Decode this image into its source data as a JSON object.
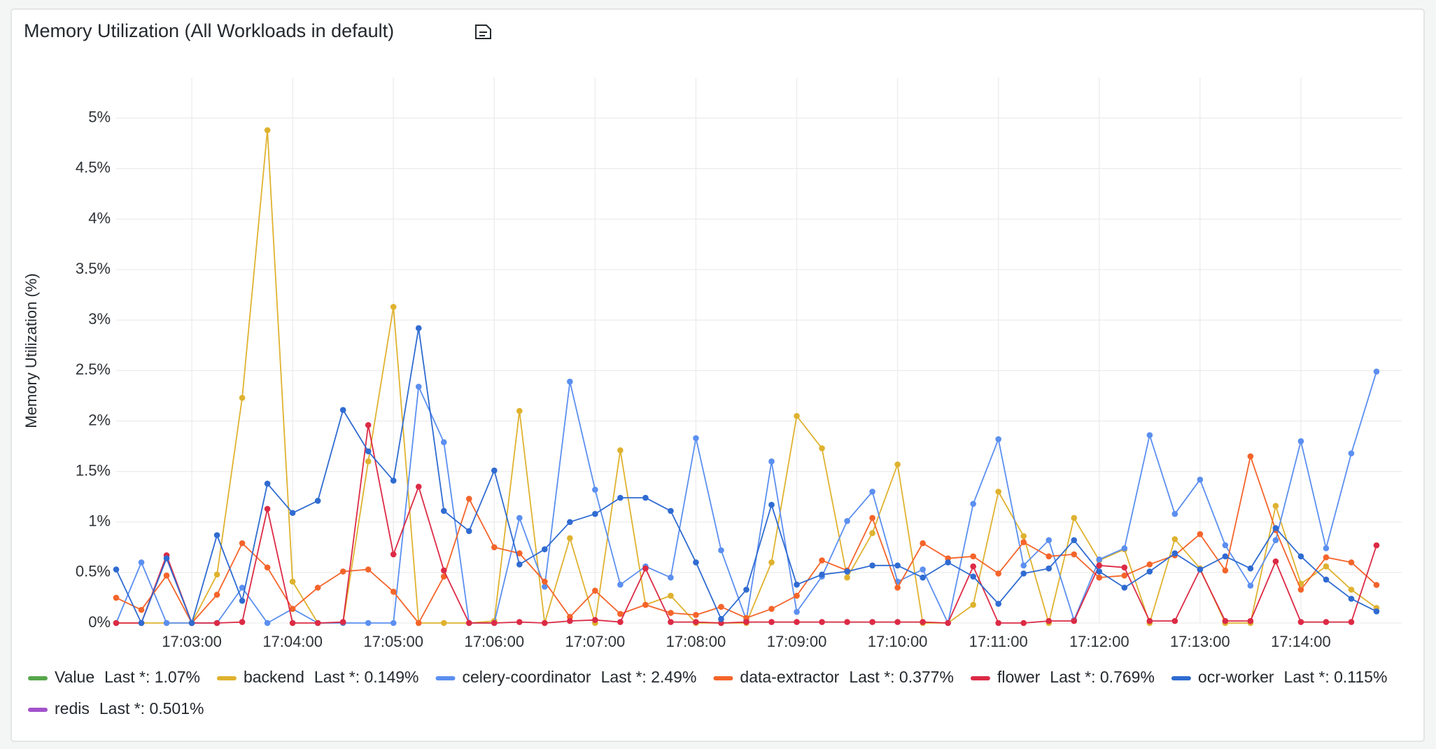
{
  "chart_data": {
    "type": "line",
    "title": "Memory Utilization (All Workloads in default)",
    "y_label": "Memory Utilization (%)",
    "x": [
      "17:02:15",
      "17:02:30",
      "17:02:45",
      "17:03:00",
      "17:03:15",
      "17:03:30",
      "17:03:45",
      "17:04:00",
      "17:04:15",
      "17:04:30",
      "17:04:45",
      "17:05:00",
      "17:05:15",
      "17:05:30",
      "17:05:45",
      "17:06:00",
      "17:06:15",
      "17:06:30",
      "17:06:45",
      "17:07:00",
      "17:07:15",
      "17:07:30",
      "17:07:45",
      "17:08:00",
      "17:08:15",
      "17:08:30",
      "17:08:45",
      "17:09:00",
      "17:09:15",
      "17:09:30",
      "17:09:45",
      "17:10:00",
      "17:10:15",
      "17:10:30",
      "17:10:45",
      "17:11:00",
      "17:11:15",
      "17:11:30",
      "17:11:45",
      "17:12:00",
      "17:12:15",
      "17:12:30",
      "17:12:45",
      "17:13:00",
      "17:13:15",
      "17:13:30",
      "17:13:45",
      "17:14:00",
      "17:14:15",
      "17:14:30",
      "17:14:45"
    ],
    "xlim": [
      "17:02:15",
      "17:15:00"
    ],
    "xticks": [
      "17:03:00",
      "17:04:00",
      "17:05:00",
      "17:06:00",
      "17:07:00",
      "17:08:00",
      "17:09:00",
      "17:10:00",
      "17:11:00",
      "17:12:00",
      "17:13:00",
      "17:14:00"
    ],
    "ylim": [
      0,
      5.4
    ],
    "yticks": [
      {
        "value": 0,
        "label": "0%"
      },
      {
        "value": 0.5,
        "label": "0.5%"
      },
      {
        "value": 1,
        "label": "1%"
      },
      {
        "value": 1.5,
        "label": "1.5%"
      },
      {
        "value": 2,
        "label": "2%"
      },
      {
        "value": 2.5,
        "label": "2.5%"
      },
      {
        "value": 3,
        "label": "3%"
      },
      {
        "value": 3.5,
        "label": "3.5%"
      },
      {
        "value": 4,
        "label": "4%"
      },
      {
        "value": 4.5,
        "label": "4.5%"
      },
      {
        "value": 5,
        "label": "5%"
      }
    ],
    "grid": true,
    "series": [
      {
        "name": "Value",
        "color": "#56a64b",
        "hidden": true,
        "legend_value": "Last *: 1.07%"
      },
      {
        "name": "backend",
        "color": "#dfb22f",
        "legend_value": "Last *: 0.149%",
        "values": [
          0,
          0,
          0,
          0,
          0.48,
          2.23,
          4.88,
          0.41,
          0,
          0,
          1.6,
          3.13,
          0,
          0,
          0,
          0.02,
          2.1,
          0,
          0.84,
          0,
          1.71,
          0.18,
          0.27,
          0,
          0,
          0,
          0.6,
          2.05,
          1.73,
          0.45,
          0.89,
          1.57,
          0,
          0,
          0.18,
          1.3,
          0.86,
          0,
          1.04,
          0.62,
          0.73,
          0,
          0.83,
          0.54,
          0,
          0,
          1.16,
          0.39,
          0.56,
          0.33,
          0.149
        ]
      },
      {
        "name": "celery-coordinator",
        "color": "#5b8ff0",
        "legend_value": "Last *: 2.49%",
        "values": [
          0,
          0.6,
          0,
          0,
          0,
          0.35,
          0,
          0.14,
          0,
          0,
          0,
          0,
          2.34,
          1.79,
          0,
          0,
          1.04,
          0.36,
          2.39,
          1.32,
          0.38,
          0.56,
          0.45,
          1.83,
          0.72,
          0.03,
          1.6,
          0.11,
          0.46,
          1.01,
          1.3,
          0.41,
          0.53,
          0,
          1.18,
          1.82,
          0.57,
          0.82,
          0.03,
          0.63,
          0.74,
          1.86,
          1.08,
          1.42,
          0.77,
          0.37,
          0.82,
          1.8,
          0.74,
          1.68,
          2.49
        ]
      },
      {
        "name": "data-extractor",
        "color": "#f4642a",
        "legend_value": "Last *: 0.377%",
        "values": [
          0.25,
          0.13,
          0.47,
          0,
          0.28,
          0.79,
          0.55,
          0.14,
          0.35,
          0.51,
          0.53,
          0.31,
          0,
          0.46,
          1.23,
          0.75,
          0.69,
          0.41,
          0.06,
          0.32,
          0.09,
          0.18,
          0.1,
          0.08,
          0.16,
          0.05,
          0.14,
          0.27,
          0.62,
          0.52,
          1.04,
          0.35,
          0.79,
          0.64,
          0.66,
          0.49,
          0.8,
          0.66,
          0.68,
          0.45,
          0.47,
          0.58,
          0.67,
          0.88,
          0.52,
          1.65,
          0.92,
          0.33,
          0.65,
          0.6,
          0.377
        ]
      },
      {
        "name": "flower",
        "color": "#dc2a45",
        "legend_value": "Last *: 0.769%",
        "values": [
          0,
          0,
          0.67,
          0,
          0,
          0.01,
          1.13,
          0,
          0,
          0.01,
          1.96,
          0.68,
          1.35,
          0.52,
          0,
          0,
          0.01,
          0,
          0.02,
          0.03,
          0.01,
          0.54,
          0.01,
          0.01,
          0,
          0.01,
          0.01,
          0.01,
          0.01,
          0.01,
          0.01,
          0.01,
          0.01,
          0,
          0.56,
          0,
          0,
          0.02,
          0.02,
          0.57,
          0.55,
          0.02,
          0.02,
          0.53,
          0.02,
          0.02,
          0.61,
          0.01,
          0.01,
          0.01,
          0.769
        ]
      },
      {
        "name": "ocr-worker",
        "color": "#2f6bd1",
        "legend_value": "Last *: 0.115%",
        "values": [
          0.53,
          0,
          0.64,
          0,
          0.87,
          0.22,
          1.38,
          1.09,
          1.21,
          2.11,
          1.7,
          1.41,
          2.92,
          1.11,
          0.91,
          1.51,
          0.58,
          0.73,
          1.0,
          1.08,
          1.24,
          1.24,
          1.11,
          0.6,
          0.04,
          0.33,
          1.17,
          0.38,
          0.48,
          0.51,
          0.57,
          0.57,
          0.45,
          0.6,
          0.46,
          0.19,
          0.49,
          0.54,
          0.82,
          0.51,
          0.35,
          0.51,
          0.69,
          0.53,
          0.66,
          0.54,
          0.94,
          0.66,
          0.43,
          0.24,
          0.115
        ]
      },
      {
        "name": "redis",
        "color": "#a352cc",
        "hidden": true,
        "legend_value": "Last *: 0.501%"
      }
    ]
  }
}
